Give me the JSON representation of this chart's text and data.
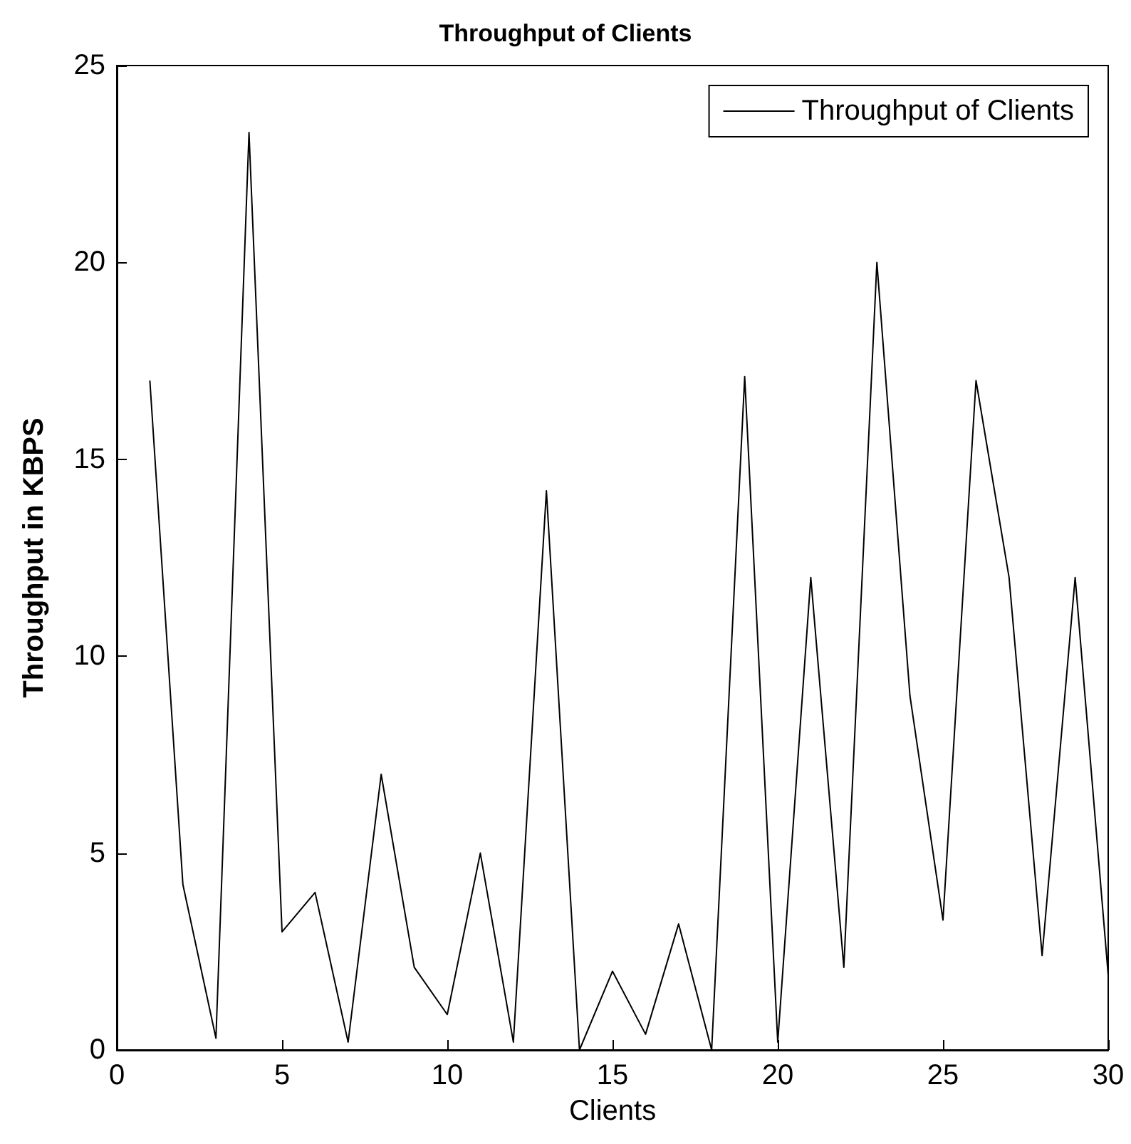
{
  "chart_data": {
    "type": "line",
    "title": "Throughput of Clients",
    "xlabel": "Clients",
    "ylabel": "Throughput in KBPS",
    "x": [
      1,
      2,
      3,
      4,
      5,
      6,
      7,
      8,
      9,
      10,
      11,
      12,
      13,
      14,
      15,
      16,
      17,
      18,
      19,
      20,
      21,
      22,
      23,
      24,
      25,
      26,
      27,
      28,
      29,
      30
    ],
    "series": [
      {
        "name": "Throughput of Clients",
        "color": "#000000",
        "values": [
          17,
          4.2,
          0.3,
          23.3,
          3,
          4,
          0.2,
          7,
          2.1,
          0.9,
          5,
          0.2,
          14.2,
          0,
          2,
          0.4,
          3.2,
          0,
          17.1,
          0.2,
          12,
          2.1,
          20,
          9,
          3.3,
          17,
          12,
          2.4,
          12,
          1.9
        ]
      }
    ],
    "xlim": [
      0,
      30
    ],
    "xticks": [
      0,
      5,
      10,
      15,
      20,
      25,
      30
    ],
    "ylim": [
      0,
      25
    ],
    "yticks": [
      0,
      5,
      10,
      15,
      20,
      25
    ],
    "grid": false,
    "legend": "top right",
    "marker": "none",
    "line_style": "solid"
  }
}
